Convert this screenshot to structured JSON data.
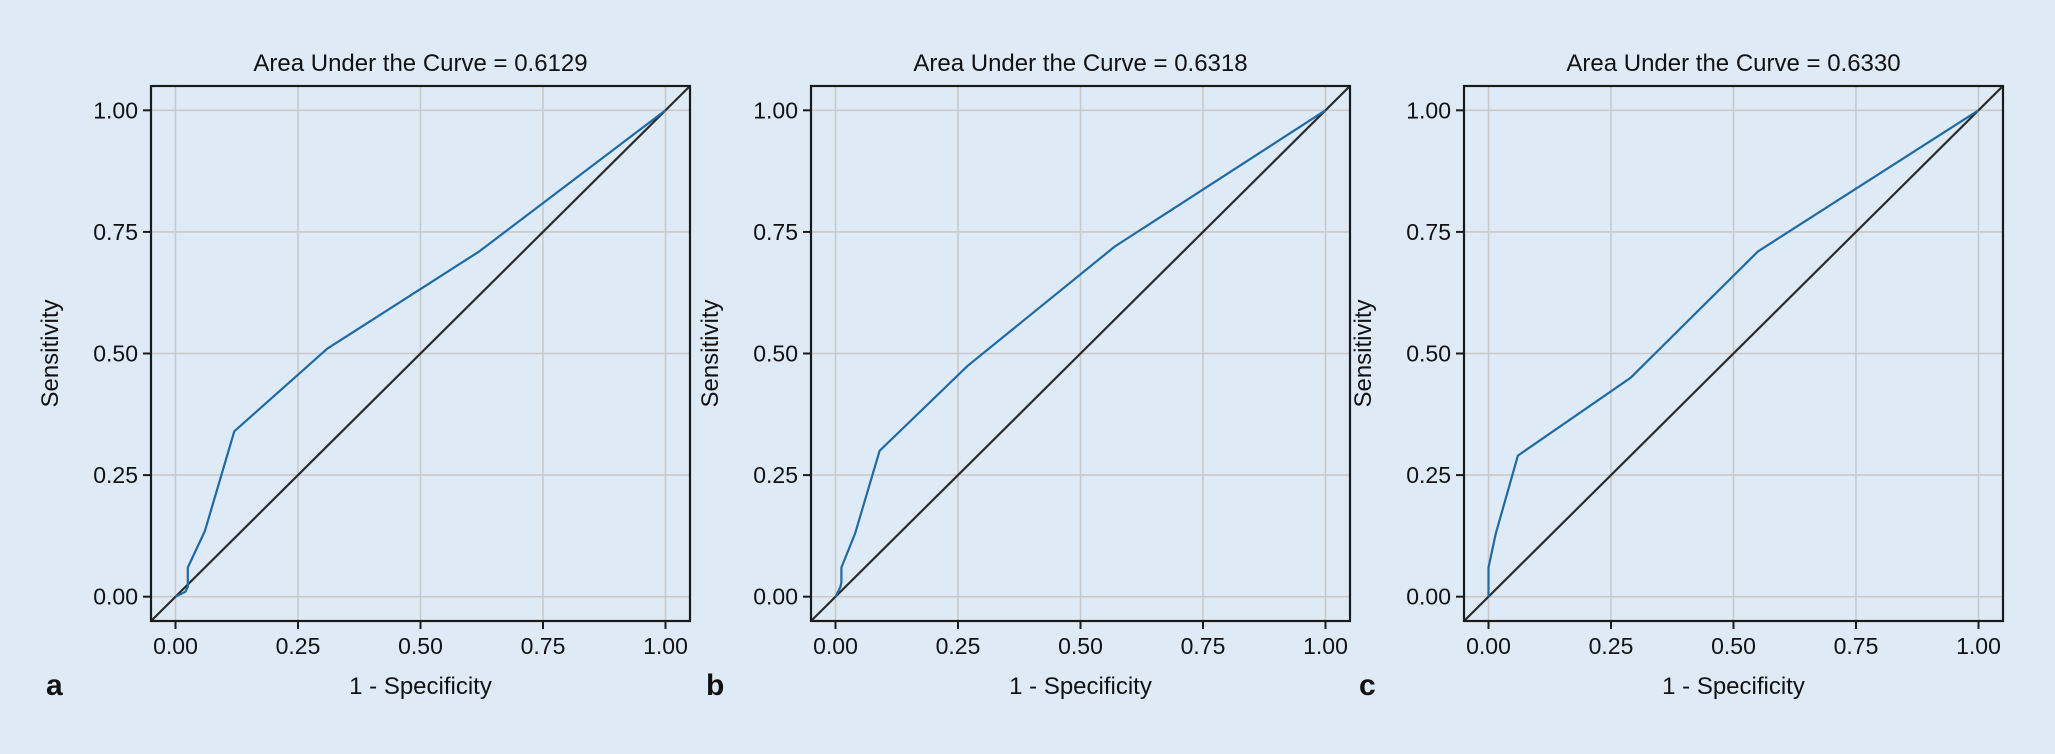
{
  "colors": {
    "background": "#deebf7",
    "plot_background": "#deebf7",
    "grid": "#c9c9c9",
    "axis": "#1a1a1a",
    "roc_line": "#1f6aa5",
    "reference_line": "#2b2b2b",
    "text": "#111111"
  },
  "chart_data": [
    {
      "type": "line",
      "panel_label": "a",
      "title": "Area Under the Curve = 0.6129",
      "xlabel": "1 - Specificity",
      "ylabel": "Sensitivity",
      "xlim": [
        -0.05,
        1.05
      ],
      "ylim": [
        -0.05,
        1.05
      ],
      "xticks": [
        "0.00",
        "0.25",
        "0.50",
        "0.75",
        "1.00"
      ],
      "yticks": [
        "0.00",
        "0.25",
        "0.50",
        "0.75",
        "1.00"
      ],
      "grid": true,
      "reference_line": true,
      "series": [
        {
          "x": [
            0.0,
            0.02,
            0.025,
            0.025,
            0.06,
            0.12,
            0.31,
            0.62,
            1.0
          ],
          "y": [
            0.0,
            0.01,
            0.02,
            0.06,
            0.135,
            0.34,
            0.51,
            0.71,
            1.0
          ]
        }
      ]
    },
    {
      "type": "line",
      "panel_label": "b",
      "title": "Area Under the Curve = 0.6318",
      "xlabel": "1 - Specificity",
      "ylabel": "Sensitivity",
      "xlim": [
        -0.05,
        1.05
      ],
      "ylim": [
        -0.05,
        1.05
      ],
      "xticks": [
        "0.00",
        "0.25",
        "0.50",
        "0.75",
        "1.00"
      ],
      "yticks": [
        "0.00",
        "0.25",
        "0.50",
        "0.75",
        "1.00"
      ],
      "grid": true,
      "reference_line": true,
      "series": [
        {
          "x": [
            0.0,
            0.01,
            0.012,
            0.012,
            0.04,
            0.09,
            0.27,
            0.57,
            1.0
          ],
          "y": [
            0.0,
            0.02,
            0.03,
            0.06,
            0.13,
            0.3,
            0.475,
            0.72,
            1.0
          ]
        }
      ]
    },
    {
      "type": "line",
      "panel_label": "c",
      "title": "Area Under the Curve = 0.6330",
      "xlabel": "1 - Specificity",
      "ylabel": "Sensitivity",
      "xlim": [
        -0.05,
        1.05
      ],
      "ylim": [
        -0.05,
        1.05
      ],
      "xticks": [
        "0.00",
        "0.25",
        "0.50",
        "0.75",
        "1.00"
      ],
      "yticks": [
        "0.00",
        "0.25",
        "0.50",
        "0.75",
        "1.00"
      ],
      "grid": true,
      "reference_line": true,
      "series": [
        {
          "x": [
            0.0,
            0.0,
            0.015,
            0.06,
            0.29,
            0.55,
            1.0
          ],
          "y": [
            0.0,
            0.06,
            0.13,
            0.29,
            0.45,
            0.71,
            1.0
          ]
        }
      ]
    }
  ]
}
